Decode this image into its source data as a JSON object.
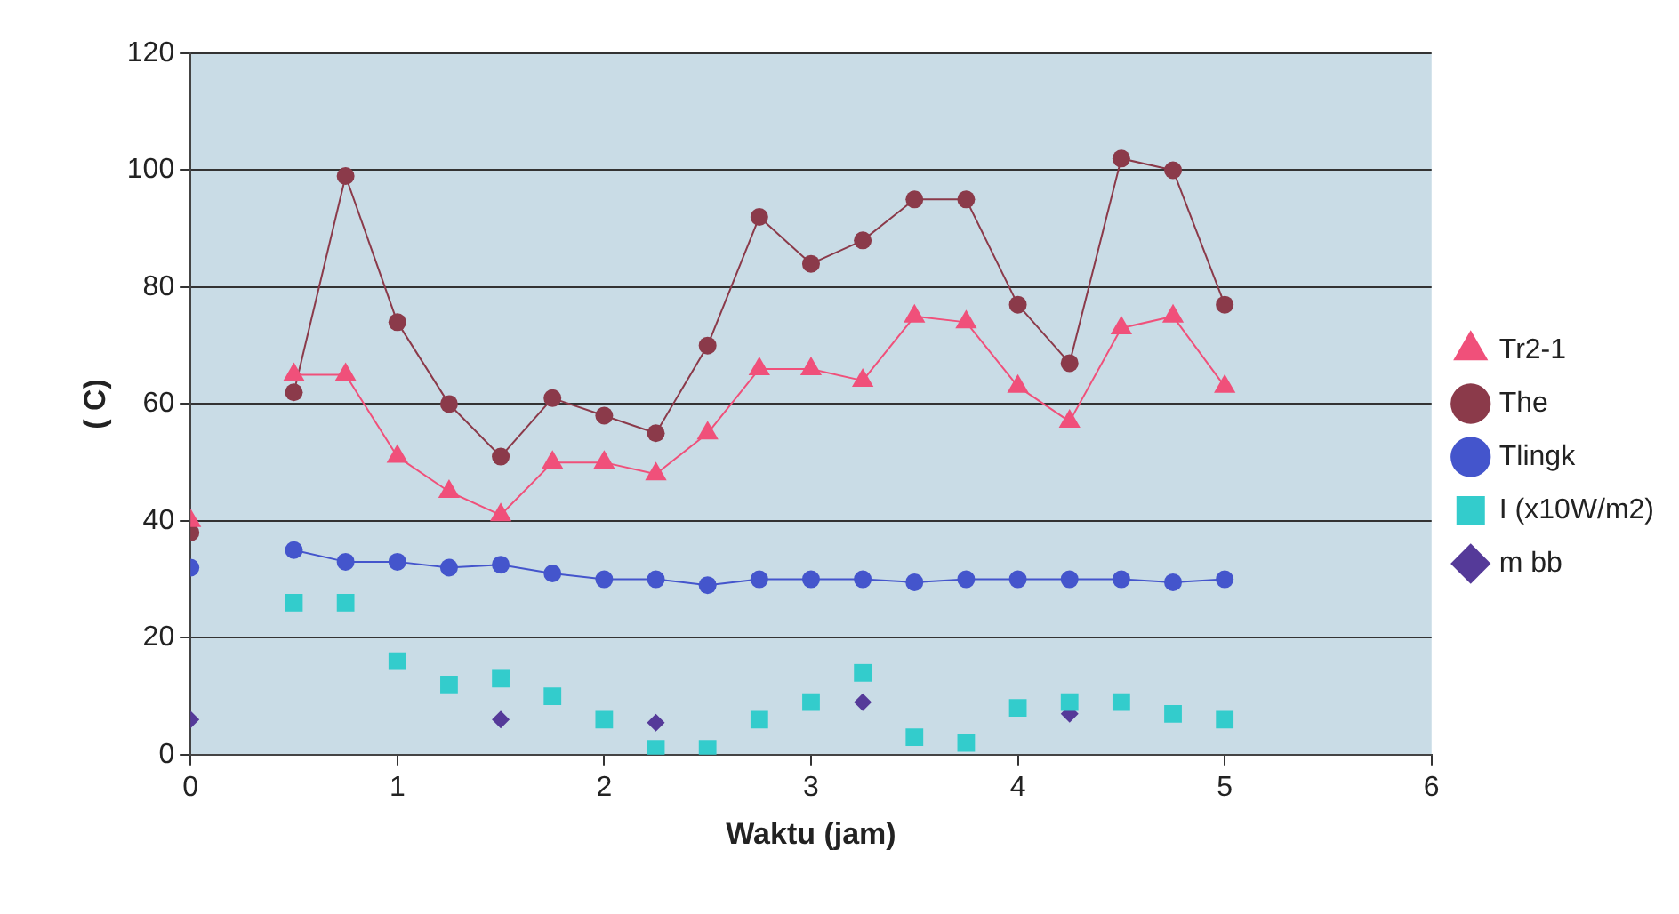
{
  "chart_data": {
    "type": "line",
    "xlabel": "Waktu (jam)",
    "ylabel": "( C)",
    "x": [
      0,
      0.25,
      0.5,
      0.75,
      1,
      1.25,
      1.5,
      1.75,
      2,
      2.25,
      2.5,
      2.75,
      3,
      3.25,
      3.5,
      3.75,
      4,
      4.25,
      4.5,
      4.75,
      5
    ],
    "series": [
      {
        "name": "Tr2-1",
        "color": "#f0507a",
        "marker": "triangle",
        "values": [
          40,
          null,
          65,
          65,
          51,
          45,
          41,
          50,
          50,
          48,
          55,
          66,
          66,
          64,
          75,
          74,
          63,
          57,
          73,
          75,
          63
        ]
      },
      {
        "name": "The",
        "color": "#8b3a4a",
        "marker": "circle",
        "values": [
          38,
          null,
          62,
          99,
          74,
          60,
          51,
          61,
          58,
          55,
          70,
          92,
          84,
          88,
          95,
          95,
          77,
          67,
          102,
          100,
          77
        ]
      },
      {
        "name": "Tlingk",
        "color": "#4455cc",
        "marker": "circle",
        "values": [
          32,
          null,
          35,
          33,
          33,
          32,
          32.5,
          31,
          30,
          30,
          29,
          30,
          30,
          30,
          29.5,
          30,
          30,
          30,
          30,
          29.5,
          30
        ]
      },
      {
        "name": "I (x10W/m2)",
        "type": "scatter",
        "color": "#33cccc",
        "marker": "square",
        "values": [
          null,
          null,
          26,
          26,
          16,
          12,
          13,
          10,
          6,
          1,
          1,
          6,
          9,
          14,
          3,
          2,
          8,
          9,
          9,
          7,
          6
        ]
      },
      {
        "name": "m bb",
        "type": "scatter",
        "color": "#553a99",
        "marker": "diamond",
        "values": [
          6,
          null,
          null,
          null,
          null,
          null,
          6,
          null,
          null,
          5.5,
          null,
          null,
          null,
          9,
          null,
          null,
          null,
          7,
          null,
          null,
          null
        ]
      }
    ],
    "xlim": [
      0,
      6
    ],
    "xticks": [
      0,
      1,
      2,
      3,
      4,
      5,
      6
    ],
    "ylim": [
      0,
      120
    ],
    "yticks": [
      0,
      20,
      40,
      60,
      80,
      100,
      120
    ],
    "grid": "y",
    "legend": "right"
  }
}
